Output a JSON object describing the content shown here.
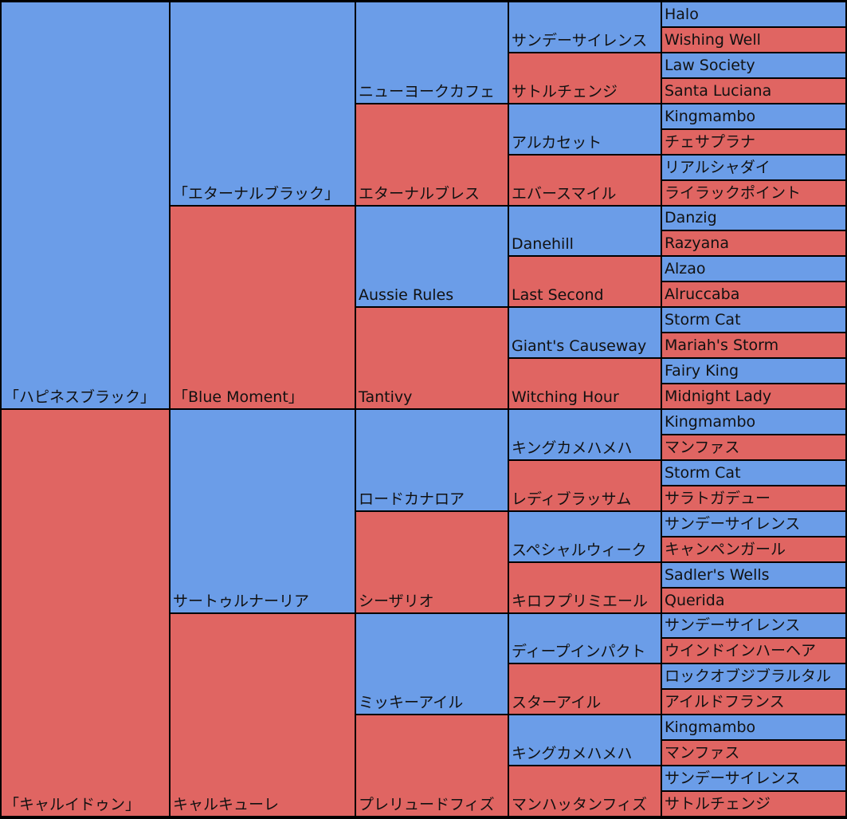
{
  "colors": {
    "sire": "#6b9de8",
    "dam": "#e06562",
    "border": "#000000"
  },
  "generations": [
    [
      "「ハピネスブラック」",
      "「キャルイドゥン」"
    ],
    [
      "「エターナルブラック」",
      "「Blue Moment」",
      "サートゥルナーリア",
      "キャルキューレ"
    ],
    [
      "ニューヨークカフェ",
      "エターナルブレス",
      "Aussie Rules",
      "Tantivy",
      "ロードカナロア",
      "シーザリオ",
      "ミッキーアイル",
      "プレリュードフィズ"
    ],
    [
      "サンデーサイレンス",
      "サトルチェンジ",
      "アルカセット",
      "エバースマイル",
      "Danehill",
      "Last Second",
      "Giant's Causeway",
      "Witching Hour",
      "キングカメハメハ",
      "レディブラッサム",
      "スペシャルウィーク",
      "キロフプリミエール",
      "ディープインパクト",
      "スターアイル",
      "キングカメハメハ",
      "マンハッタンフィズ"
    ],
    [
      "Halo",
      "Wishing Well",
      "Law Society",
      "Santa Luciana",
      "Kingmambo",
      "チェサプラナ",
      "リアルシャダイ",
      "ライラックポイント",
      "Danzig",
      "Razyana",
      "Alzao",
      "Alruccaba",
      "Storm Cat",
      "Mariah's Storm",
      "Fairy King",
      "Midnight Lady",
      "Kingmambo",
      "マンファス",
      "Storm Cat",
      "サラトガデュー",
      "サンデーサイレンス",
      "キャンペンガール",
      "Sadler's Wells",
      "Querida",
      "サンデーサイレンス",
      "ウインドインハーヘア",
      "ロックオブジブラルタル",
      "アイルドフランス",
      "Kingmambo",
      "マンファス",
      "サンデーサイレンス",
      "サトルチェンジ"
    ]
  ]
}
